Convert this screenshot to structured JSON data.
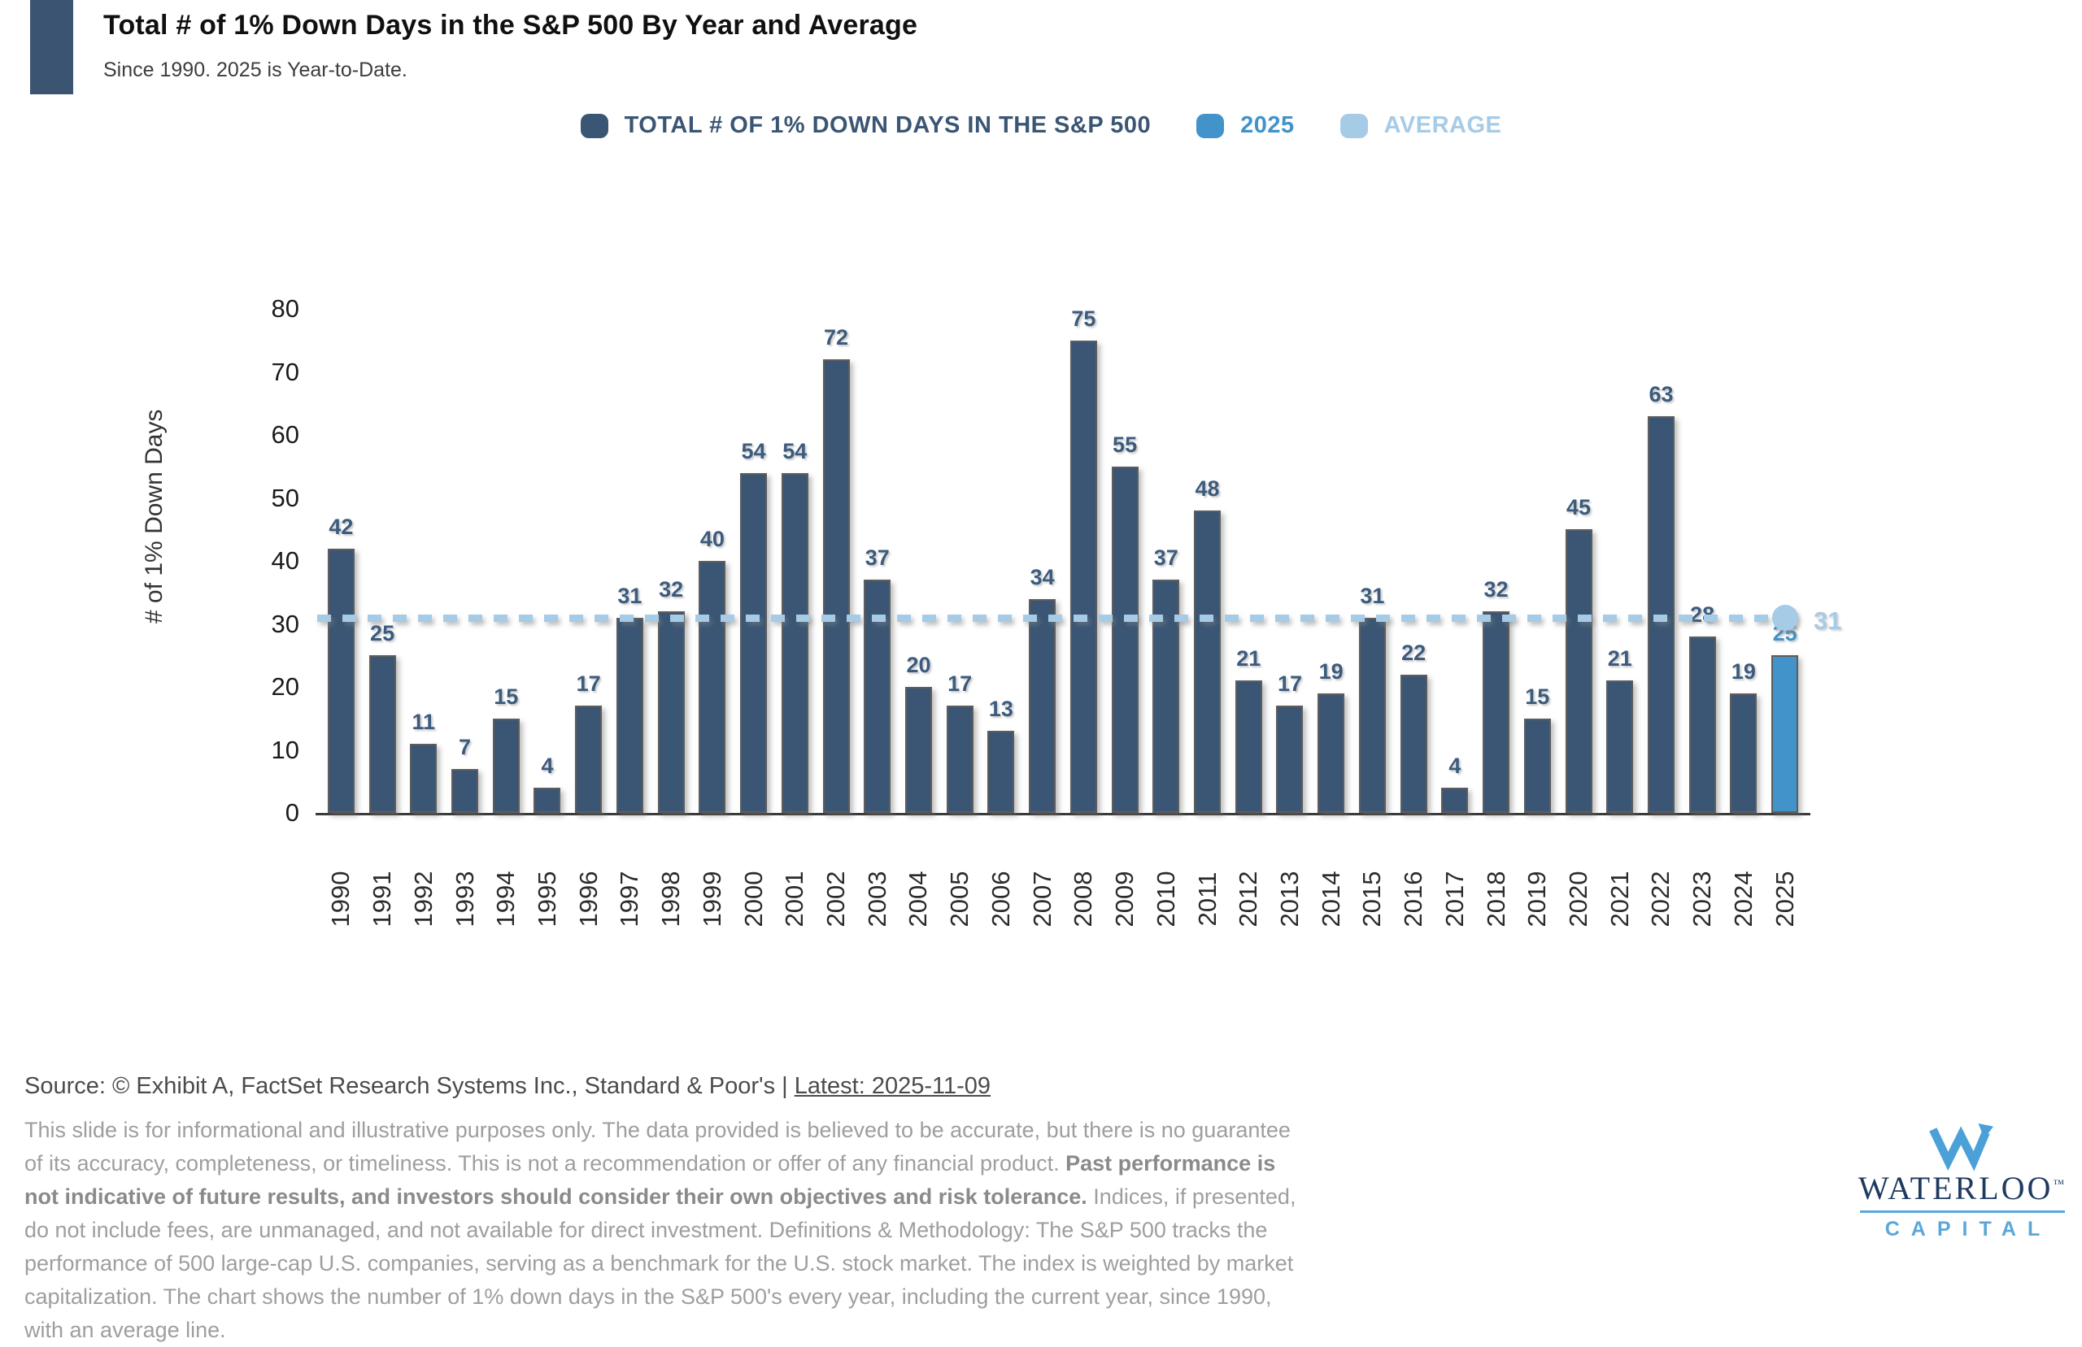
{
  "header": {
    "title": "Total # of 1% Down Days in the S&P 500 By Year and Average",
    "subtitle": "Since 1990. 2025 is Year-to-Date."
  },
  "legend": {
    "items": [
      {
        "label": "TOTAL # OF 1% DOWN DAYS IN THE S&P 500",
        "color": "#3A5674"
      },
      {
        "label": "2025",
        "color": "#4193C9"
      },
      {
        "label": "AVERAGE",
        "color": "#A6CBE6"
      }
    ]
  },
  "chart_data": {
    "type": "bar",
    "title": "Total # of 1% Down Days in the S&P 500 By Year and Average",
    "series_name": "Total # of 1% Down Days in the S&P 500",
    "categories": [
      "1990",
      "1991",
      "1992",
      "1993",
      "1994",
      "1995",
      "1996",
      "1997",
      "1998",
      "1999",
      "2000",
      "2001",
      "2002",
      "2003",
      "2004",
      "2005",
      "2006",
      "2007",
      "2008",
      "2009",
      "2010",
      "2011",
      "2012",
      "2013",
      "2014",
      "2015",
      "2016",
      "2017",
      "2018",
      "2019",
      "2020",
      "2021",
      "2022",
      "2023",
      "2024",
      "2025"
    ],
    "values": [
      42,
      25,
      11,
      7,
      15,
      4,
      17,
      31,
      32,
      40,
      54,
      54,
      72,
      37,
      20,
      17,
      13,
      34,
      75,
      55,
      37,
      48,
      21,
      17,
      19,
      31,
      22,
      4,
      32,
      15,
      45,
      21,
      63,
      28,
      19,
      25
    ],
    "highlight_category": "2025",
    "highlight_value": 25,
    "average": 31,
    "ylabel": "# of 1% Down Days",
    "ylim": [
      0,
      80
    ],
    "yticks": [
      0,
      10,
      20,
      30,
      40,
      50,
      60,
      70,
      80
    ],
    "grid": false,
    "legend_position": "top",
    "colors": {
      "bars": "#3A5674",
      "highlight": "#4193C9",
      "average_line": "#A6CBE6",
      "bar_label": "#3C5B7D",
      "highlight_label": "#4193C9",
      "average_label": "#A6CBE6"
    }
  },
  "footer": {
    "source_prefix": "Source: © Exhibit A, FactSet Research Systems Inc., Standard & Poor's | ",
    "source_link": "Latest: 2025-11-09",
    "disclaimer_1": "This slide is for informational and illustrative purposes only. The data provided is believed to be accurate, but there is no guarantee of its accuracy, completeness, or timeliness. This is not a recommendation or offer of any financial product. ",
    "disclaimer_bold": "Past performance is not indicative of future results, and investors should consider their own objectives and risk tolerance.",
    "disclaimer_2": " Indices, if presented, do not include fees, are unmanaged, and not available for direct investment. Definitions & Methodology: The S&P 500 tracks the performance of 500 large-cap U.S. companies, serving as a benchmark for the U.S. stock market. The index is weighted by market capitalization. The chart shows the number of 1% down days in the S&P 500's every year, including the current year, since 1990, with an average line."
  },
  "logo": {
    "wordmark": "WATERLOO",
    "tm": "™",
    "subtext": "CAPITAL"
  }
}
